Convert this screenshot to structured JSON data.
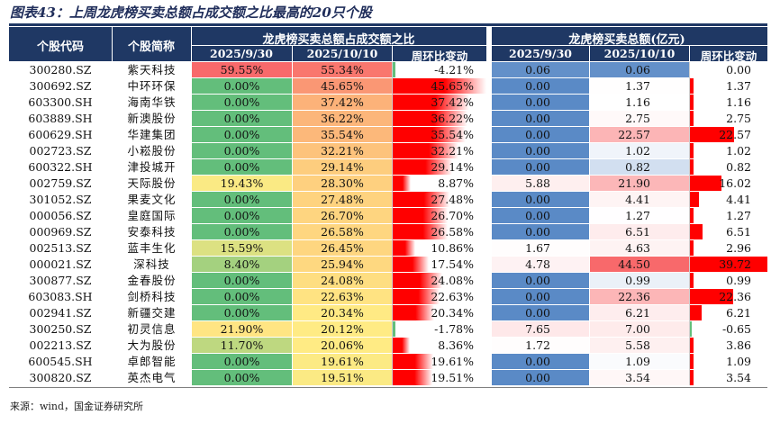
{
  "title": "图表43：上周龙虎榜买卖总额占成交额之比最高的20只个股",
  "headers": {
    "code": "个股代码",
    "name": "个股简称",
    "group1": "龙虎榜买卖总额占成交额之比",
    "group2": "龙虎榜买卖总额(亿元)",
    "date1": "2025/9/30",
    "date2": "2025/10/10",
    "wow": "周环比变动"
  },
  "rows": [
    {
      "code": "300280.SZ",
      "name": "紫天科技",
      "r1": "59.55%",
      "r2": "55.34%",
      "rchg": "-4.21%",
      "a1": "0.06",
      "a2": "0.06",
      "achg": "0.00"
    },
    {
      "code": "300692.SZ",
      "name": "中环环保",
      "r1": "0.00%",
      "r2": "45.65%",
      "rchg": "45.65%",
      "a1": "0.00",
      "a2": "1.37",
      "achg": "1.37"
    },
    {
      "code": "603300.SH",
      "name": "海南华铁",
      "r1": "0.00%",
      "r2": "37.42%",
      "rchg": "37.42%",
      "a1": "0.00",
      "a2": "1.16",
      "achg": "1.16"
    },
    {
      "code": "603889.SH",
      "name": "新澳股份",
      "r1": "0.00%",
      "r2": "36.22%",
      "rchg": "36.22%",
      "a1": "0.00",
      "a2": "2.75",
      "achg": "2.75"
    },
    {
      "code": "600629.SH",
      "name": "华建集团",
      "r1": "0.00%",
      "r2": "35.54%",
      "rchg": "35.54%",
      "a1": "0.00",
      "a2": "22.57",
      "achg": "22.57"
    },
    {
      "code": "002723.SZ",
      "name": "小崧股份",
      "r1": "0.00%",
      "r2": "32.21%",
      "rchg": "32.21%",
      "a1": "0.00",
      "a2": "1.02",
      "achg": "1.02"
    },
    {
      "code": "600322.SH",
      "name": "津投城开",
      "r1": "0.00%",
      "r2": "29.14%",
      "rchg": "29.14%",
      "a1": "0.00",
      "a2": "0.82",
      "achg": "0.82"
    },
    {
      "code": "002759.SZ",
      "name": "天际股份",
      "r1": "19.43%",
      "r2": "28.30%",
      "rchg": "8.87%",
      "a1": "5.88",
      "a2": "21.90",
      "achg": "16.02"
    },
    {
      "code": "301052.SZ",
      "name": "果麦文化",
      "r1": "0.00%",
      "r2": "27.48%",
      "rchg": "27.48%",
      "a1": "0.00",
      "a2": "4.41",
      "achg": "4.41"
    },
    {
      "code": "000056.SZ",
      "name": "皇庭国际",
      "r1": "0.00%",
      "r2": "26.70%",
      "rchg": "26.70%",
      "a1": "0.00",
      "a2": "1.27",
      "achg": "1.27"
    },
    {
      "code": "000969.SZ",
      "name": "安泰科技",
      "r1": "0.00%",
      "r2": "26.58%",
      "rchg": "26.58%",
      "a1": "0.00",
      "a2": "6.51",
      "achg": "6.51"
    },
    {
      "code": "002513.SZ",
      "name": "蓝丰生化",
      "r1": "15.59%",
      "r2": "26.45%",
      "rchg": "10.86%",
      "a1": "1.67",
      "a2": "4.63",
      "achg": "2.96"
    },
    {
      "code": "000021.SZ",
      "name": "深科技",
      "r1": "8.40%",
      "r2": "25.94%",
      "rchg": "17.54%",
      "a1": "4.78",
      "a2": "44.50",
      "achg": "39.72"
    },
    {
      "code": "300877.SZ",
      "name": "金春股份",
      "r1": "0.00%",
      "r2": "24.08%",
      "rchg": "24.08%",
      "a1": "0.00",
      "a2": "0.99",
      "achg": "0.99"
    },
    {
      "code": "603083.SH",
      "name": "剑桥科技",
      "r1": "0.00%",
      "r2": "22.63%",
      "rchg": "22.63%",
      "a1": "0.00",
      "a2": "22.36",
      "achg": "22.36"
    },
    {
      "code": "002941.SZ",
      "name": "新疆交建",
      "r1": "0.00%",
      "r2": "20.34%",
      "rchg": "20.34%",
      "a1": "0.00",
      "a2": "6.21",
      "achg": "6.21"
    },
    {
      "code": "300250.SZ",
      "name": "初灵信息",
      "r1": "21.90%",
      "r2": "20.12%",
      "rchg": "-1.78%",
      "a1": "7.65",
      "a2": "7.00",
      "achg": "-0.65"
    },
    {
      "code": "002213.SZ",
      "name": "大为股份",
      "r1": "11.70%",
      "r2": "20.06%",
      "rchg": "8.36%",
      "a1": "1.72",
      "a2": "5.58",
      "achg": "3.86"
    },
    {
      "code": "600545.SH",
      "name": "卓郎智能",
      "r1": "0.00%",
      "r2": "19.61%",
      "rchg": "19.61%",
      "a1": "0.00",
      "a2": "1.09",
      "achg": "1.09"
    },
    {
      "code": "300820.SZ",
      "name": "英杰电气",
      "r1": "0.00%",
      "r2": "19.51%",
      "rchg": "19.51%",
      "a1": "0.00",
      "a2": "3.54",
      "achg": "3.54"
    }
  ],
  "source": "来源：wind，国金证券研究所",
  "colors": {
    "header_bg": "#1f3864",
    "ratio_low": "#63be7b",
    "ratio_mid": "#ffeb84",
    "ratio_high": "#f8696b",
    "amount_low": "#5a8ac6",
    "amount_high": "#f8696b",
    "bar_red": "#ff0000",
    "bar_green": "#63be7b"
  }
}
